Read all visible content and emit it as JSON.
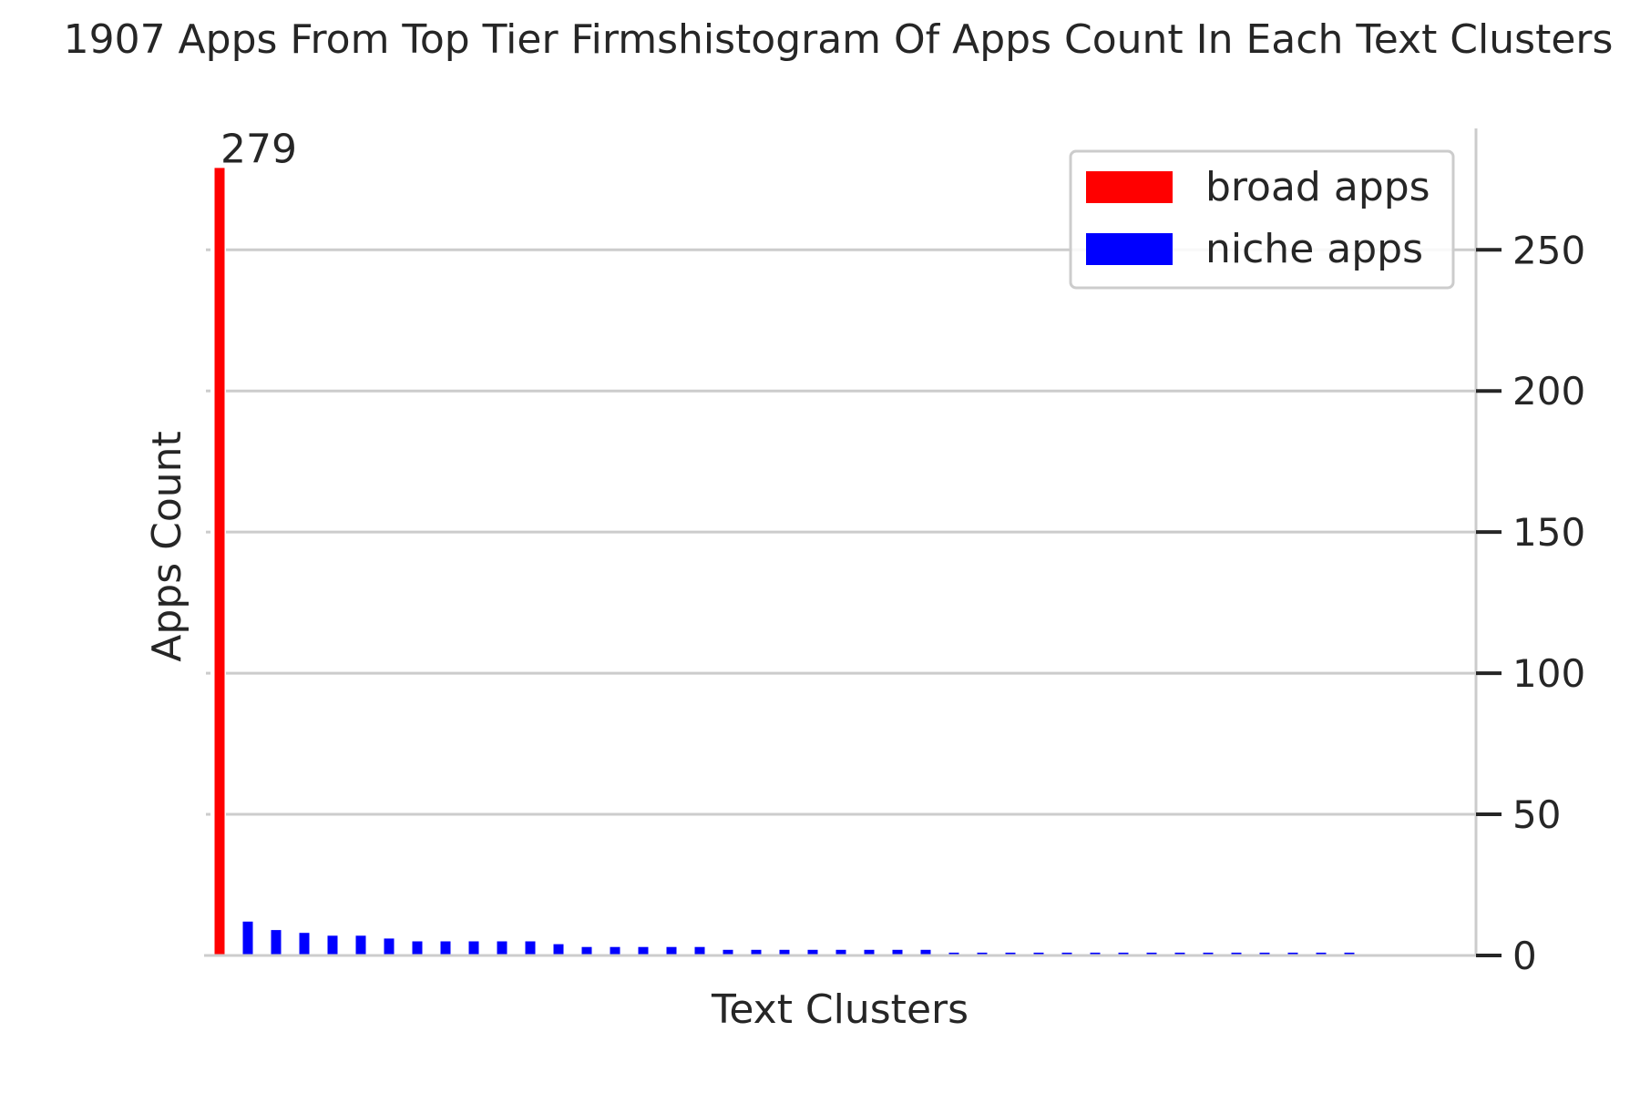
{
  "chart_data": {
    "type": "bar",
    "title": "1907 Apps From Top Tier Firmshistogram Of Apps Count In Each Text Clusters",
    "xlabel": "Text Clusters",
    "ylabel": "Apps Count",
    "ylim": [
      0,
      293
    ],
    "yticks": [
      0,
      50,
      100,
      150,
      200,
      250
    ],
    "y_axis_side": "right",
    "grid": "horizontal",
    "legend_position": "top-right",
    "series": [
      {
        "name": "broad apps",
        "color": "#ff0000",
        "values": [
          279
        ]
      },
      {
        "name": "niche apps",
        "color": "#0000ff",
        "values": [
          12,
          9,
          8,
          7,
          7,
          6,
          5,
          5,
          5,
          5,
          5,
          4,
          3,
          3,
          3,
          3,
          3,
          2,
          2,
          2,
          2,
          2,
          2,
          2,
          2,
          1,
          1,
          1,
          1,
          1,
          1,
          1,
          1,
          1,
          1,
          1,
          1,
          1,
          1,
          1
        ]
      }
    ],
    "annotations": [
      {
        "text": "279",
        "series": "broad apps",
        "index": 0
      }
    ]
  }
}
